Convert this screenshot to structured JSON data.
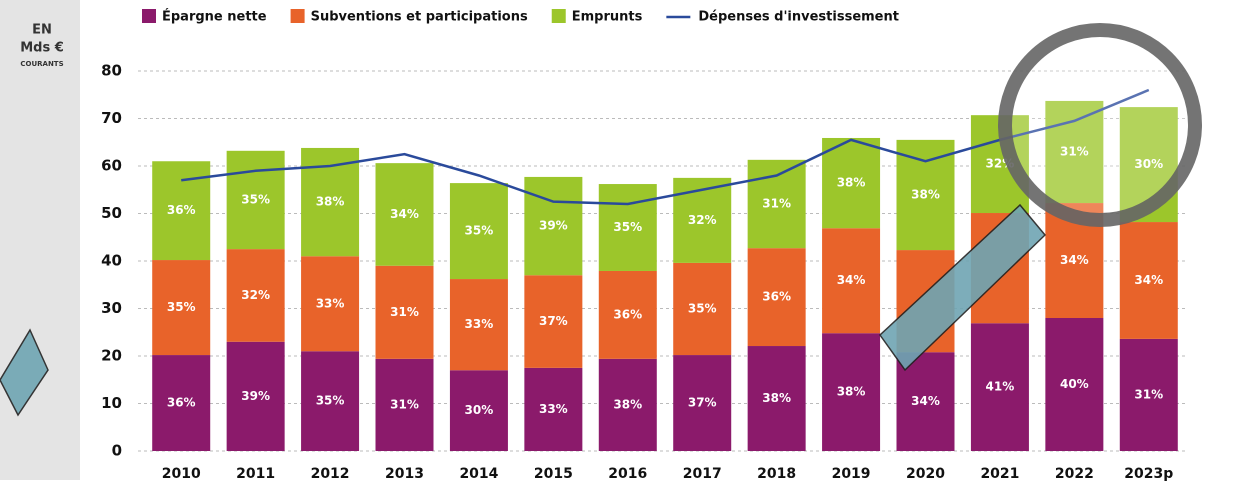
{
  "chart_data": {
    "type": "bar",
    "stacked": true,
    "unit_label": [
      "EN",
      "Mds €",
      "COURANTS"
    ],
    "categories": [
      "2010",
      "2011",
      "2012",
      "2013",
      "2014",
      "2015",
      "2016",
      "2017",
      "2018",
      "2019",
      "2020",
      "2021",
      "2022",
      "2023p"
    ],
    "series": [
      {
        "name": "Épargne nette",
        "color": "#8b1a6b",
        "values": [
          20.2,
          23,
          21,
          19.4,
          17,
          17.5,
          19.4,
          20.2,
          22.1,
          24.8,
          20.8,
          26.9,
          28,
          23.6
        ],
        "percent_labels": [
          "36%",
          "39%",
          "35%",
          "31%",
          "30%",
          "33%",
          "38%",
          "37%",
          "38%",
          "38%",
          "34%",
          "41%",
          "40%",
          "31%"
        ]
      },
      {
        "name": "Subventions et participations",
        "color": "#e8632a",
        "values": [
          20,
          19.5,
          20,
          19.6,
          19.2,
          19.5,
          18.5,
          19.4,
          20.6,
          22.1,
          21.5,
          23.2,
          24.2,
          24.6
        ],
        "percent_labels": [
          "35%",
          "32%",
          "33%",
          "31%",
          "33%",
          "37%",
          "36%",
          "35%",
          "36%",
          "34%",
          null,
          null,
          "34%",
          "34%"
        ]
      },
      {
        "name": "Emprunts",
        "color": "#9cc62b",
        "values": [
          20.8,
          20.7,
          22.8,
          21.6,
          20.2,
          20.7,
          18.3,
          17.9,
          18.6,
          19,
          23.2,
          20.6,
          21.5,
          24.2
        ],
        "percent_labels": [
          "36%",
          "35%",
          "38%",
          "34%",
          "35%",
          "39%",
          "35%",
          "32%",
          "31%",
          "38%",
          "38%",
          "32%",
          "31%",
          "30%"
        ]
      }
    ],
    "line": {
      "name": "Dépenses d'investissement",
      "color": "#2a4a9b",
      "values": [
        57,
        59,
        60,
        62.5,
        58,
        52.5,
        52,
        55,
        58,
        65.5,
        61,
        65.5,
        69.5,
        76
      ]
    },
    "ylim": [
      0,
      80
    ],
    "yticks": [
      0,
      10,
      20,
      30,
      40,
      50,
      60,
      70,
      80
    ],
    "grid": true
  }
}
